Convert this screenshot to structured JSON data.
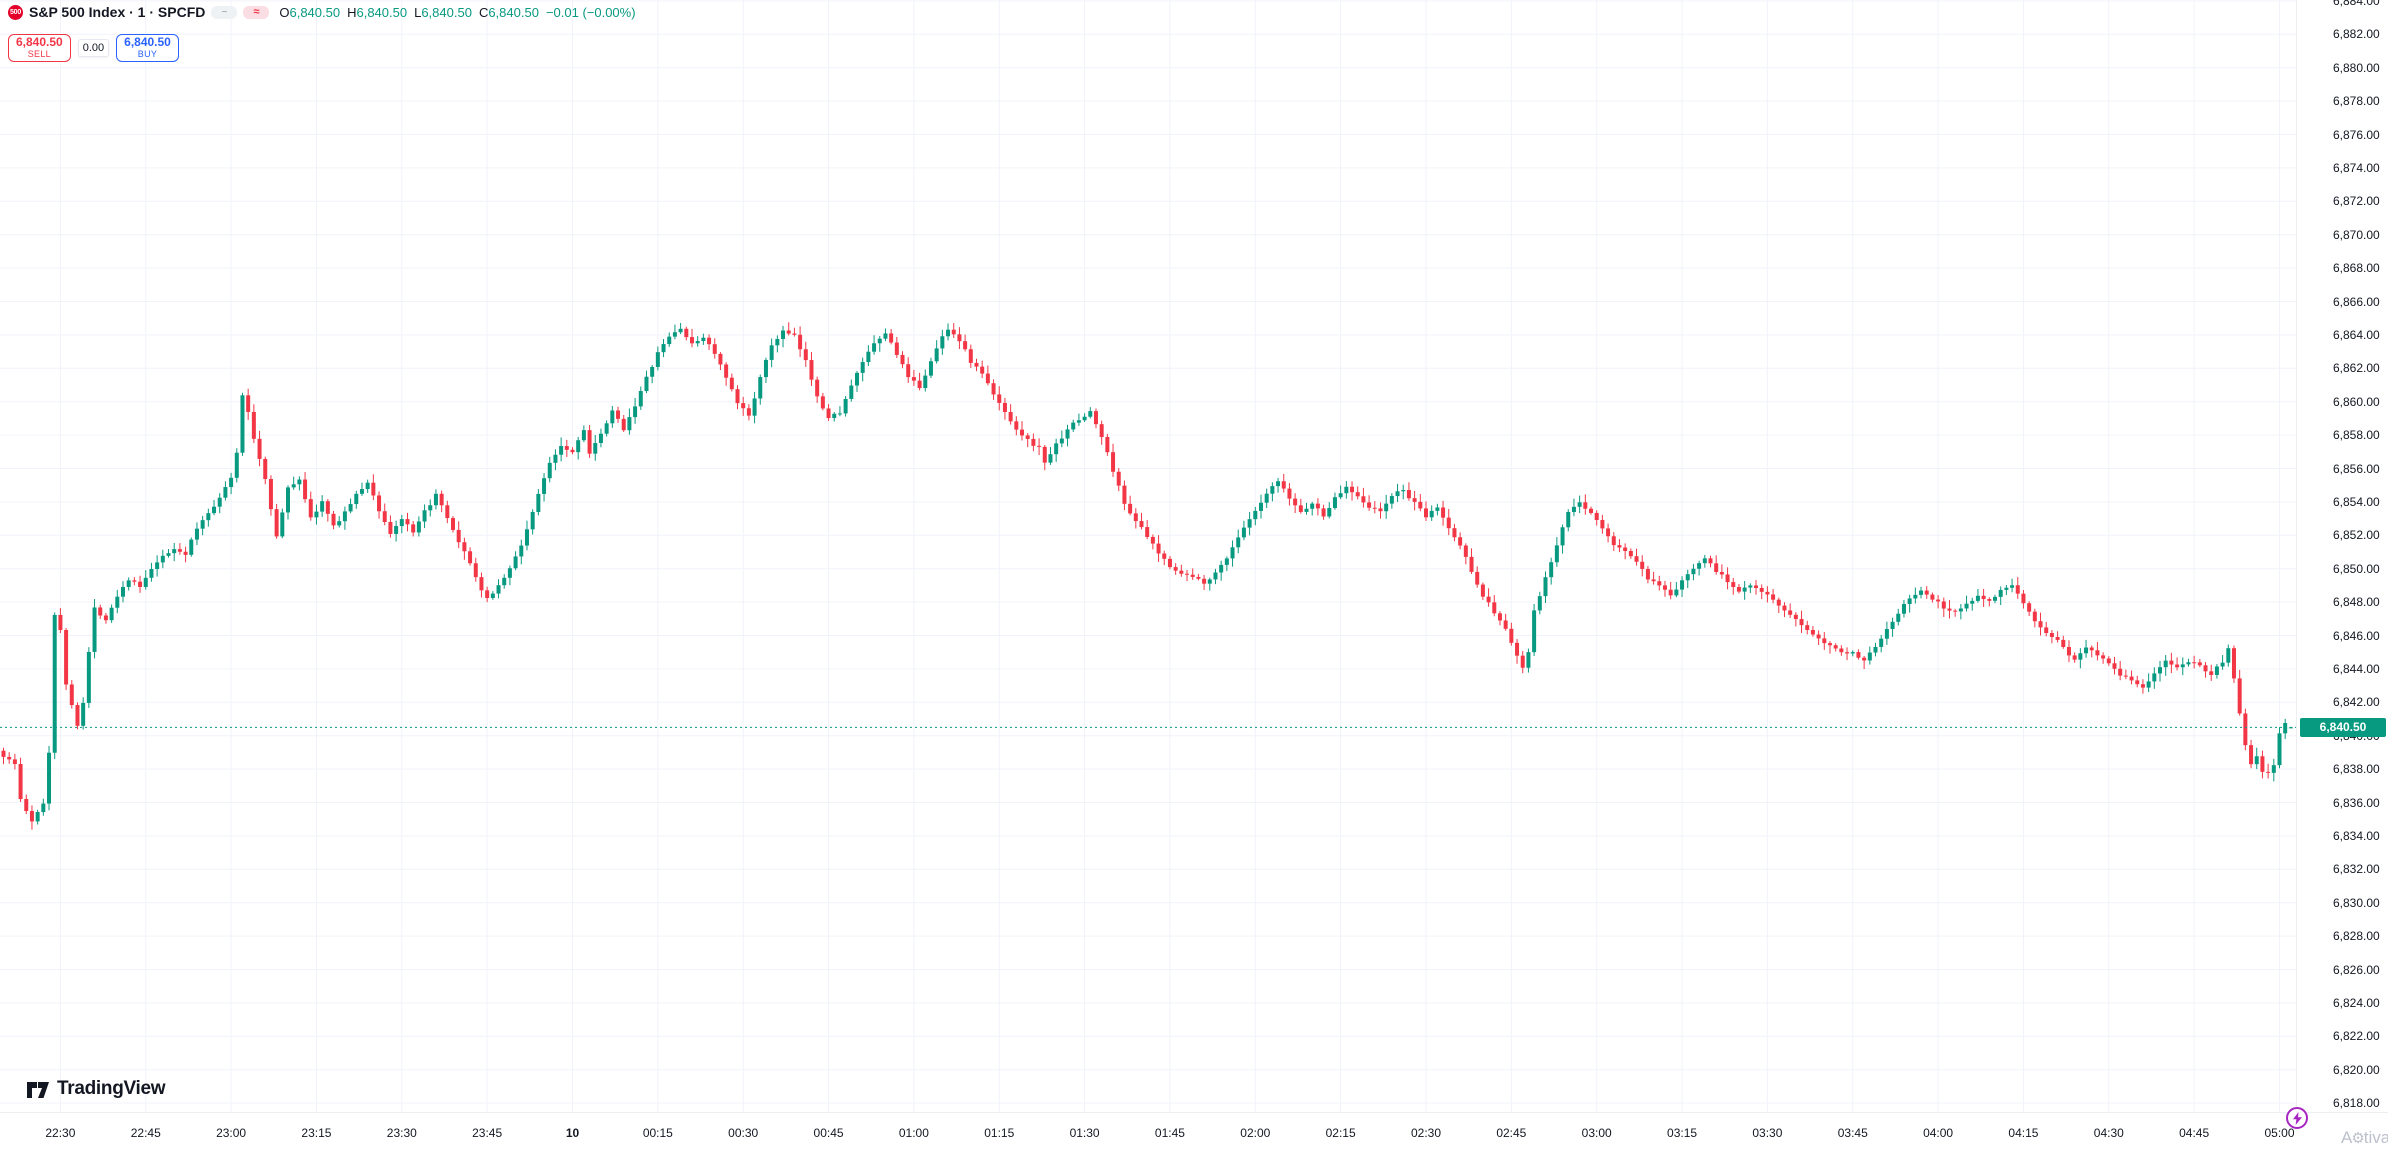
{
  "header": {
    "symbol_badge": "500",
    "title": "S&P 500 Index · 1 · SPCFD",
    "icons": {
      "collapse": "−",
      "wave": "≈"
    },
    "ohlc": {
      "o_label": "O",
      "o": "6,840.50",
      "h_label": "H",
      "h": "6,840.50",
      "l_label": "L",
      "l": "6,840.50",
      "c_label": "C",
      "c": "6,840.50",
      "change": "−0.01 (−0.00%)"
    }
  },
  "trade_panel": {
    "sell_price": "6,840.50",
    "sell_label": "SELL",
    "spread": "0.00",
    "buy_price": "6,840.50",
    "buy_label": "BUY"
  },
  "footer": {
    "logo_text": "TradingView",
    "watermark_prefix": "A",
    "watermark_suffix": "tiva"
  },
  "colors": {
    "up": "#089981",
    "down": "#f23645",
    "grid": "#f0f3fa",
    "axis_text": "#131722",
    "badge_bg": "#089981",
    "sell": "#f23645",
    "buy": "#2962ff",
    "flash": "#a626c1"
  },
  "chart_data": {
    "type": "candlestick",
    "title": "S&P 500 Index",
    "interval": "1 minute",
    "exchange": "SPCFD",
    "current_price": "6,840.50",
    "current_price_value": 6840.5,
    "price_axis": {
      "min": 6818,
      "max": 6884,
      "step": 2,
      "ylim": [
        6817.5,
        6884.1
      ]
    },
    "time_axis": {
      "first_candle_time": "22:20",
      "labels": [
        {
          "text": "22:30",
          "minute": 10
        },
        {
          "text": "22:45",
          "minute": 25
        },
        {
          "text": "23:00",
          "minute": 40
        },
        {
          "text": "23:15",
          "minute": 55
        },
        {
          "text": "23:30",
          "minute": 70
        },
        {
          "text": "23:45",
          "minute": 85
        },
        {
          "text": "10",
          "minute": 100,
          "bold": true
        },
        {
          "text": "00:15",
          "minute": 115
        },
        {
          "text": "00:30",
          "minute": 130
        },
        {
          "text": "00:45",
          "minute": 145
        },
        {
          "text": "01:00",
          "minute": 160
        },
        {
          "text": "01:15",
          "minute": 175
        },
        {
          "text": "01:30",
          "minute": 190
        },
        {
          "text": "01:45",
          "minute": 205
        },
        {
          "text": "02:00",
          "minute": 220
        },
        {
          "text": "02:15",
          "minute": 235
        },
        {
          "text": "02:30",
          "minute": 250
        },
        {
          "text": "02:45",
          "minute": 265
        },
        {
          "text": "03:00",
          "minute": 280
        },
        {
          "text": "03:15",
          "minute": 295
        },
        {
          "text": "03:30",
          "minute": 310
        },
        {
          "text": "03:45",
          "minute": 325
        },
        {
          "text": "04:00",
          "minute": 340
        },
        {
          "text": "04:15",
          "minute": 355
        },
        {
          "text": "04:30",
          "minute": 370
        },
        {
          "text": "04:45",
          "minute": 385
        },
        {
          "text": "05:00",
          "minute": 400
        }
      ]
    },
    "series_approx": {
      "note": "close-price anchors [minute,price] read from chart; minute 0 = 22:20, last = 05:02",
      "total_minutes": 402,
      "anchors": [
        [
          0,
          6838.8
        ],
        [
          2,
          6838.3
        ],
        [
          3,
          6836.2
        ],
        [
          5,
          6834.8
        ],
        [
          7,
          6836.0
        ],
        [
          8,
          6839.0
        ],
        [
          9,
          6847.3
        ],
        [
          10,
          6846.4
        ],
        [
          11,
          6843.0
        ],
        [
          13,
          6840.7
        ],
        [
          14,
          6842.0
        ],
        [
          15,
          6845.0
        ],
        [
          16,
          6847.6
        ],
        [
          18,
          6847.0
        ],
        [
          20,
          6848.4
        ],
        [
          22,
          6849.4
        ],
        [
          24,
          6848.9
        ],
        [
          27,
          6850.4
        ],
        [
          30,
          6851.2
        ],
        [
          32,
          6850.9
        ],
        [
          34,
          6852.4
        ],
        [
          37,
          6853.8
        ],
        [
          40,
          6855.4
        ],
        [
          41,
          6857.0
        ],
        [
          42,
          6860.3
        ],
        [
          43,
          6859.4
        ],
        [
          44,
          6857.8
        ],
        [
          46,
          6855.4
        ],
        [
          48,
          6851.9
        ],
        [
          50,
          6854.8
        ],
        [
          52,
          6855.4
        ],
        [
          54,
          6853.0
        ],
        [
          56,
          6854.0
        ],
        [
          58,
          6852.5
        ],
        [
          60,
          6853.4
        ],
        [
          62,
          6854.4
        ],
        [
          64,
          6855.2
        ],
        [
          66,
          6853.5
        ],
        [
          68,
          6852.1
        ],
        [
          70,
          6853.0
        ],
        [
          72,
          6852.1
        ],
        [
          74,
          6853.4
        ],
        [
          76,
          6854.4
        ],
        [
          78,
          6853.0
        ],
        [
          80,
          6851.5
        ],
        [
          82,
          6850.4
        ],
        [
          84,
          6848.6
        ],
        [
          85,
          6848.2
        ],
        [
          87,
          6849.0
        ],
        [
          89,
          6850.0
        ],
        [
          91,
          6851.4
        ],
        [
          93,
          6853.4
        ],
        [
          95,
          6855.4
        ],
        [
          96,
          6856.4
        ],
        [
          98,
          6857.4
        ],
        [
          100,
          6857.0
        ],
        [
          102,
          6858.4
        ],
        [
          103,
          6856.9
        ],
        [
          105,
          6858.0
        ],
        [
          107,
          6859.4
        ],
        [
          109,
          6858.4
        ],
        [
          111,
          6859.8
        ],
        [
          113,
          6861.4
        ],
        [
          115,
          6862.9
        ],
        [
          117,
          6863.9
        ],
        [
          119,
          6864.4
        ],
        [
          121,
          6863.4
        ],
        [
          123,
          6863.9
        ],
        [
          125,
          6862.9
        ],
        [
          127,
          6861.4
        ],
        [
          129,
          6859.9
        ],
        [
          131,
          6859.2
        ],
        [
          133,
          6861.4
        ],
        [
          135,
          6863.4
        ],
        [
          137,
          6864.2
        ],
        [
          139,
          6863.9
        ],
        [
          141,
          6862.4
        ],
        [
          143,
          6860.4
        ],
        [
          145,
          6859.0
        ],
        [
          147,
          6859.4
        ],
        [
          149,
          6860.9
        ],
        [
          151,
          6862.4
        ],
        [
          153,
          6863.4
        ],
        [
          155,
          6864.1
        ],
        [
          157,
          6862.9
        ],
        [
          159,
          6861.4
        ],
        [
          161,
          6860.9
        ],
        [
          163,
          6862.4
        ],
        [
          165,
          6863.9
        ],
        [
          166,
          6864.4
        ],
        [
          168,
          6863.7
        ],
        [
          170,
          6862.4
        ],
        [
          172,
          6861.7
        ],
        [
          174,
          6860.4
        ],
        [
          176,
          6859.4
        ],
        [
          178,
          6858.4
        ],
        [
          180,
          6857.7
        ],
        [
          182,
          6857.2
        ],
        [
          183,
          6856.4
        ],
        [
          185,
          6857.4
        ],
        [
          187,
          6858.4
        ],
        [
          189,
          6858.9
        ],
        [
          191,
          6859.4
        ],
        [
          193,
          6857.9
        ],
        [
          195,
          6855.9
        ],
        [
          197,
          6853.9
        ],
        [
          199,
          6852.9
        ],
        [
          201,
          6851.9
        ],
        [
          203,
          6850.9
        ],
        [
          205,
          6850.2
        ],
        [
          207,
          6849.7
        ],
        [
          209,
          6849.5
        ],
        [
          211,
          6849.2
        ],
        [
          213,
          6849.7
        ],
        [
          215,
          6850.7
        ],
        [
          217,
          6851.9
        ],
        [
          219,
          6852.9
        ],
        [
          221,
          6853.9
        ],
        [
          223,
          6854.9
        ],
        [
          224,
          6855.2
        ],
        [
          226,
          6854.2
        ],
        [
          228,
          6853.4
        ],
        [
          230,
          6853.9
        ],
        [
          232,
          6853.2
        ],
        [
          234,
          6854.2
        ],
        [
          236,
          6854.9
        ],
        [
          238,
          6854.4
        ],
        [
          240,
          6853.7
        ],
        [
          242,
          6853.4
        ],
        [
          244,
          6854.4
        ],
        [
          246,
          6854.7
        ],
        [
          248,
          6853.9
        ],
        [
          250,
          6853.1
        ],
        [
          252,
          6853.7
        ],
        [
          254,
          6852.4
        ],
        [
          256,
          6851.4
        ],
        [
          258,
          6849.9
        ],
        [
          260,
          6848.4
        ],
        [
          262,
          6847.4
        ],
        [
          264,
          6846.4
        ],
        [
          266,
          6844.7
        ],
        [
          267,
          6844.1
        ],
        [
          268,
          6845.0
        ],
        [
          269,
          6847.4
        ],
        [
          271,
          6849.4
        ],
        [
          273,
          6851.4
        ],
        [
          275,
          6853.4
        ],
        [
          277,
          6853.9
        ],
        [
          279,
          6853.4
        ],
        [
          281,
          6852.4
        ],
        [
          283,
          6851.4
        ],
        [
          285,
          6851.1
        ],
        [
          287,
          6850.4
        ],
        [
          289,
          6849.4
        ],
        [
          291,
          6848.9
        ],
        [
          293,
          6848.4
        ],
        [
          295,
          6849.2
        ],
        [
          297,
          6850.1
        ],
        [
          299,
          6850.7
        ],
        [
          301,
          6849.9
        ],
        [
          303,
          6849.2
        ],
        [
          305,
          6848.7
        ],
        [
          307,
          6849.1
        ],
        [
          309,
          6848.7
        ],
        [
          311,
          6848.1
        ],
        [
          313,
          6847.4
        ],
        [
          315,
          6846.9
        ],
        [
          317,
          6846.4
        ],
        [
          319,
          6845.9
        ],
        [
          321,
          6845.4
        ],
        [
          323,
          6845.1
        ],
        [
          325,
          6844.9
        ],
        [
          327,
          6844.6
        ],
        [
          329,
          6845.4
        ],
        [
          331,
          6846.4
        ],
        [
          333,
          6847.4
        ],
        [
          335,
          6848.2
        ],
        [
          337,
          6848.7
        ],
        [
          339,
          6848.2
        ],
        [
          341,
          6847.7
        ],
        [
          343,
          6847.4
        ],
        [
          345,
          6847.9
        ],
        [
          347,
          6848.4
        ],
        [
          349,
          6848.1
        ],
        [
          351,
          6848.7
        ],
        [
          353,
          6848.9
        ],
        [
          355,
          6847.9
        ],
        [
          357,
          6846.9
        ],
        [
          359,
          6846.2
        ],
        [
          361,
          6845.7
        ],
        [
          363,
          6844.9
        ],
        [
          364,
          6844.5
        ],
        [
          366,
          6845.3
        ],
        [
          368,
          6844.9
        ],
        [
          370,
          6844.4
        ],
        [
          372,
          6843.7
        ],
        [
          374,
          6843.3
        ],
        [
          376,
          6842.9
        ],
        [
          378,
          6843.7
        ],
        [
          380,
          6844.4
        ],
        [
          382,
          6844.1
        ],
        [
          384,
          6844.5
        ],
        [
          386,
          6844.2
        ],
        [
          388,
          6843.7
        ],
        [
          390,
          6844.4
        ],
        [
          391,
          6845.2
        ],
        [
          392,
          6843.4
        ],
        [
          393,
          6841.4
        ],
        [
          394,
          6839.4
        ],
        [
          395,
          6838.2
        ],
        [
          396,
          6838.7
        ],
        [
          397,
          6837.9
        ],
        [
          398,
          6837.7
        ],
        [
          399,
          6838.2
        ],
        [
          400,
          6840.1
        ],
        [
          401,
          6840.7
        ],
        [
          402,
          6840.5
        ]
      ]
    }
  }
}
